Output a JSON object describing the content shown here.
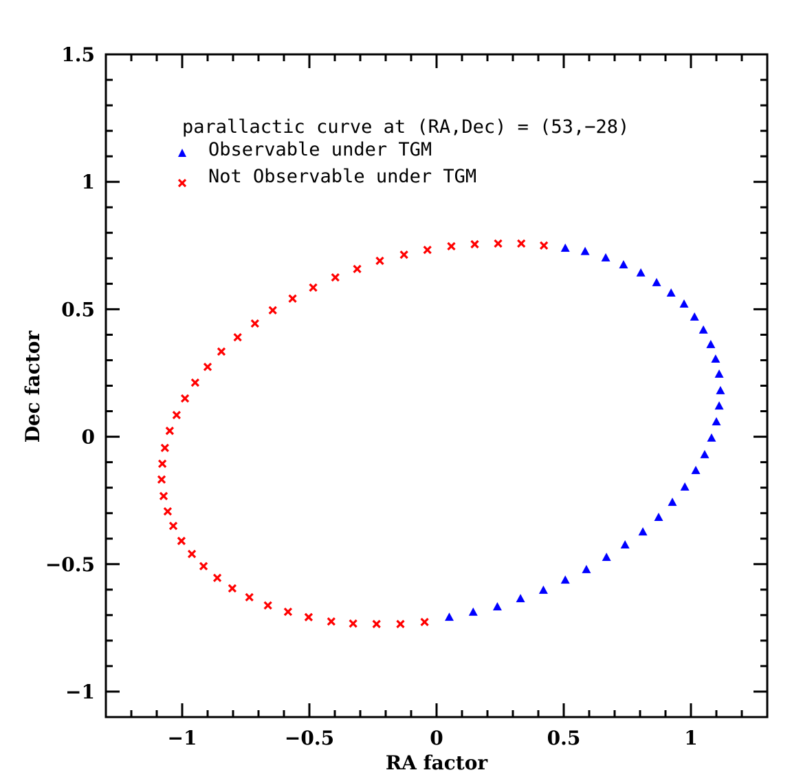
{
  "chart_data": {
    "type": "scatter",
    "title": "",
    "xlabel": "RA factor",
    "ylabel": "Dec factor",
    "xlim": [
      -1.3,
      1.3
    ],
    "ylim": [
      -1.1,
      1.5
    ],
    "grid": false,
    "legend_placement": "top-left",
    "legend_title": "parallactic curve at (RA,Dec) = (53,−28)",
    "x_ticks": [
      -1,
      -0.5,
      0,
      0.5,
      1
    ],
    "x_tick_labels": [
      "−1",
      "−0.5",
      "0",
      "0.5",
      "1"
    ],
    "y_ticks": [
      -1,
      -0.5,
      0,
      0.5,
      1,
      1.5
    ],
    "y_tick_labels": [
      "−1",
      "−0.5",
      "0",
      "0.5",
      "1",
      "1.5"
    ],
    "minor_tick_step": 0.1,
    "series": [
      {
        "name": "Observable under TGM",
        "marker": "triangle",
        "color": "#0000ff",
        "x": [
          0.05,
          0.144,
          0.239,
          0.33,
          0.42,
          0.506,
          0.589,
          0.668,
          0.741,
          0.811,
          0.873,
          0.927,
          0.976,
          1.019,
          1.054,
          1.081,
          1.1,
          1.111,
          1.116,
          1.111,
          1.097,
          1.078,
          1.049,
          1.014,
          0.973,
          0.922,
          0.865,
          0.803,
          0.735,
          0.665,
          0.584,
          0.506
        ],
        "y": [
          -0.709,
          -0.689,
          -0.668,
          -0.636,
          -0.603,
          -0.563,
          -0.522,
          -0.474,
          -0.425,
          -0.374,
          -0.317,
          -0.258,
          -0.198,
          -0.133,
          -0.071,
          -0.006,
          0.058,
          0.12,
          0.18,
          0.245,
          0.304,
          0.361,
          0.418,
          0.469,
          0.52,
          0.563,
          0.604,
          0.642,
          0.674,
          0.701,
          0.726,
          0.739
        ]
      },
      {
        "name": "Not Observable under TGM",
        "marker": "cross",
        "color": "#ff0000",
        "x": [
          0.422,
          0.333,
          0.242,
          0.15,
          0.058,
          -0.036,
          -0.128,
          -0.223,
          -0.312,
          -0.398,
          -0.485,
          -0.566,
          -0.644,
          -0.714,
          -0.782,
          -0.846,
          -0.9,
          -0.949,
          -0.989,
          -1.022,
          -1.049,
          -1.068,
          -1.078,
          -1.081,
          -1.073,
          -1.057,
          -1.035,
          -1.003,
          -0.962,
          -0.916,
          -0.862,
          -0.803,
          -0.736,
          -0.663,
          -0.584,
          -0.503,
          -0.414,
          -0.328,
          -0.236,
          -0.142,
          -0.047
        ],
        "y": [
          0.75,
          0.758,
          0.758,
          0.755,
          0.747,
          0.733,
          0.714,
          0.69,
          0.658,
          0.625,
          0.585,
          0.542,
          0.496,
          0.444,
          0.39,
          0.334,
          0.274,
          0.212,
          0.15,
          0.085,
          0.023,
          -0.044,
          -0.106,
          -0.168,
          -0.233,
          -0.293,
          -0.35,
          -0.409,
          -0.46,
          -0.508,
          -0.554,
          -0.595,
          -0.63,
          -0.662,
          -0.687,
          -0.708,
          -0.725,
          -0.733,
          -0.735,
          -0.735,
          -0.727
        ]
      }
    ]
  }
}
